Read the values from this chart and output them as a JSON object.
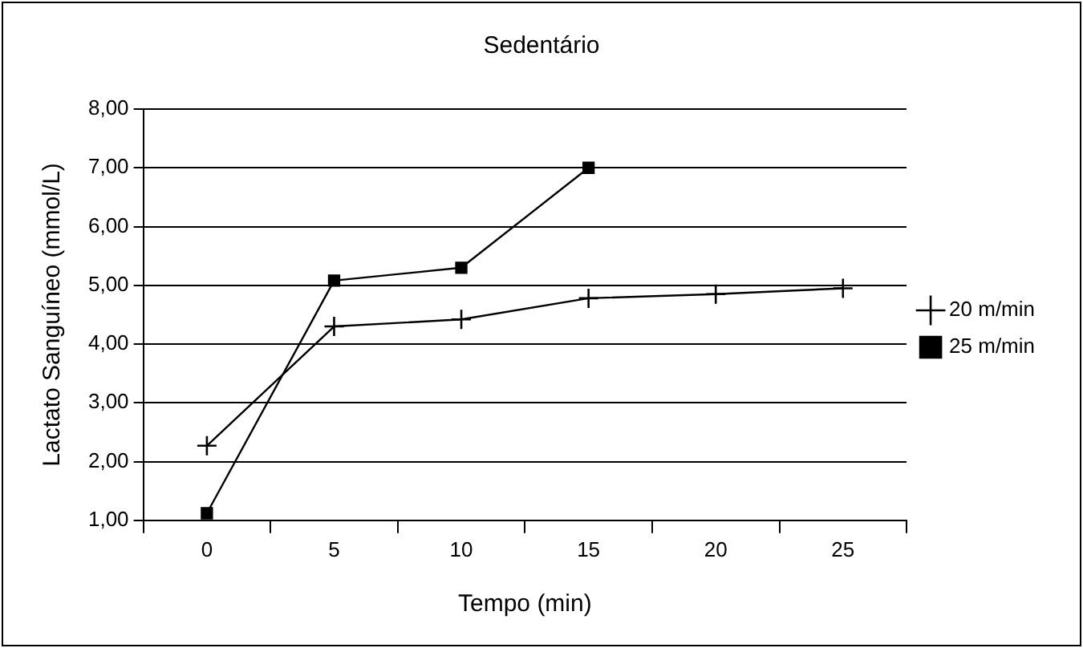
{
  "chart_data": {
    "type": "line",
    "title": "Sedentário",
    "xlabel": "Tempo (min)",
    "ylabel": "Lactato Sanguíneo (mmol/L)",
    "categories": [
      "0",
      "5",
      "10",
      "15",
      "20",
      "25"
    ],
    "series": [
      {
        "name": "20 m/min",
        "color": "#000000",
        "marker": "cross",
        "values": [
          2.27,
          4.3,
          4.42,
          4.78,
          4.85,
          4.95
        ]
      },
      {
        "name": "25 m/min",
        "color": "#000000",
        "marker": "square",
        "values": [
          1.12,
          5.08,
          5.3,
          7.0,
          null,
          null
        ]
      }
    ],
    "ylim": [
      1,
      8
    ],
    "yticks": [
      {
        "value": 1,
        "label": "1,00"
      },
      {
        "value": 2,
        "label": "2,00"
      },
      {
        "value": 3,
        "label": "3,00"
      },
      {
        "value": 4,
        "label": "4,00"
      },
      {
        "value": 5,
        "label": "5,00"
      },
      {
        "value": 6,
        "label": "6,00"
      },
      {
        "value": 7,
        "label": "7,00"
      },
      {
        "value": 8,
        "label": "8,00"
      }
    ],
    "grid": "y",
    "legend": "right",
    "line_style": "solid"
  }
}
